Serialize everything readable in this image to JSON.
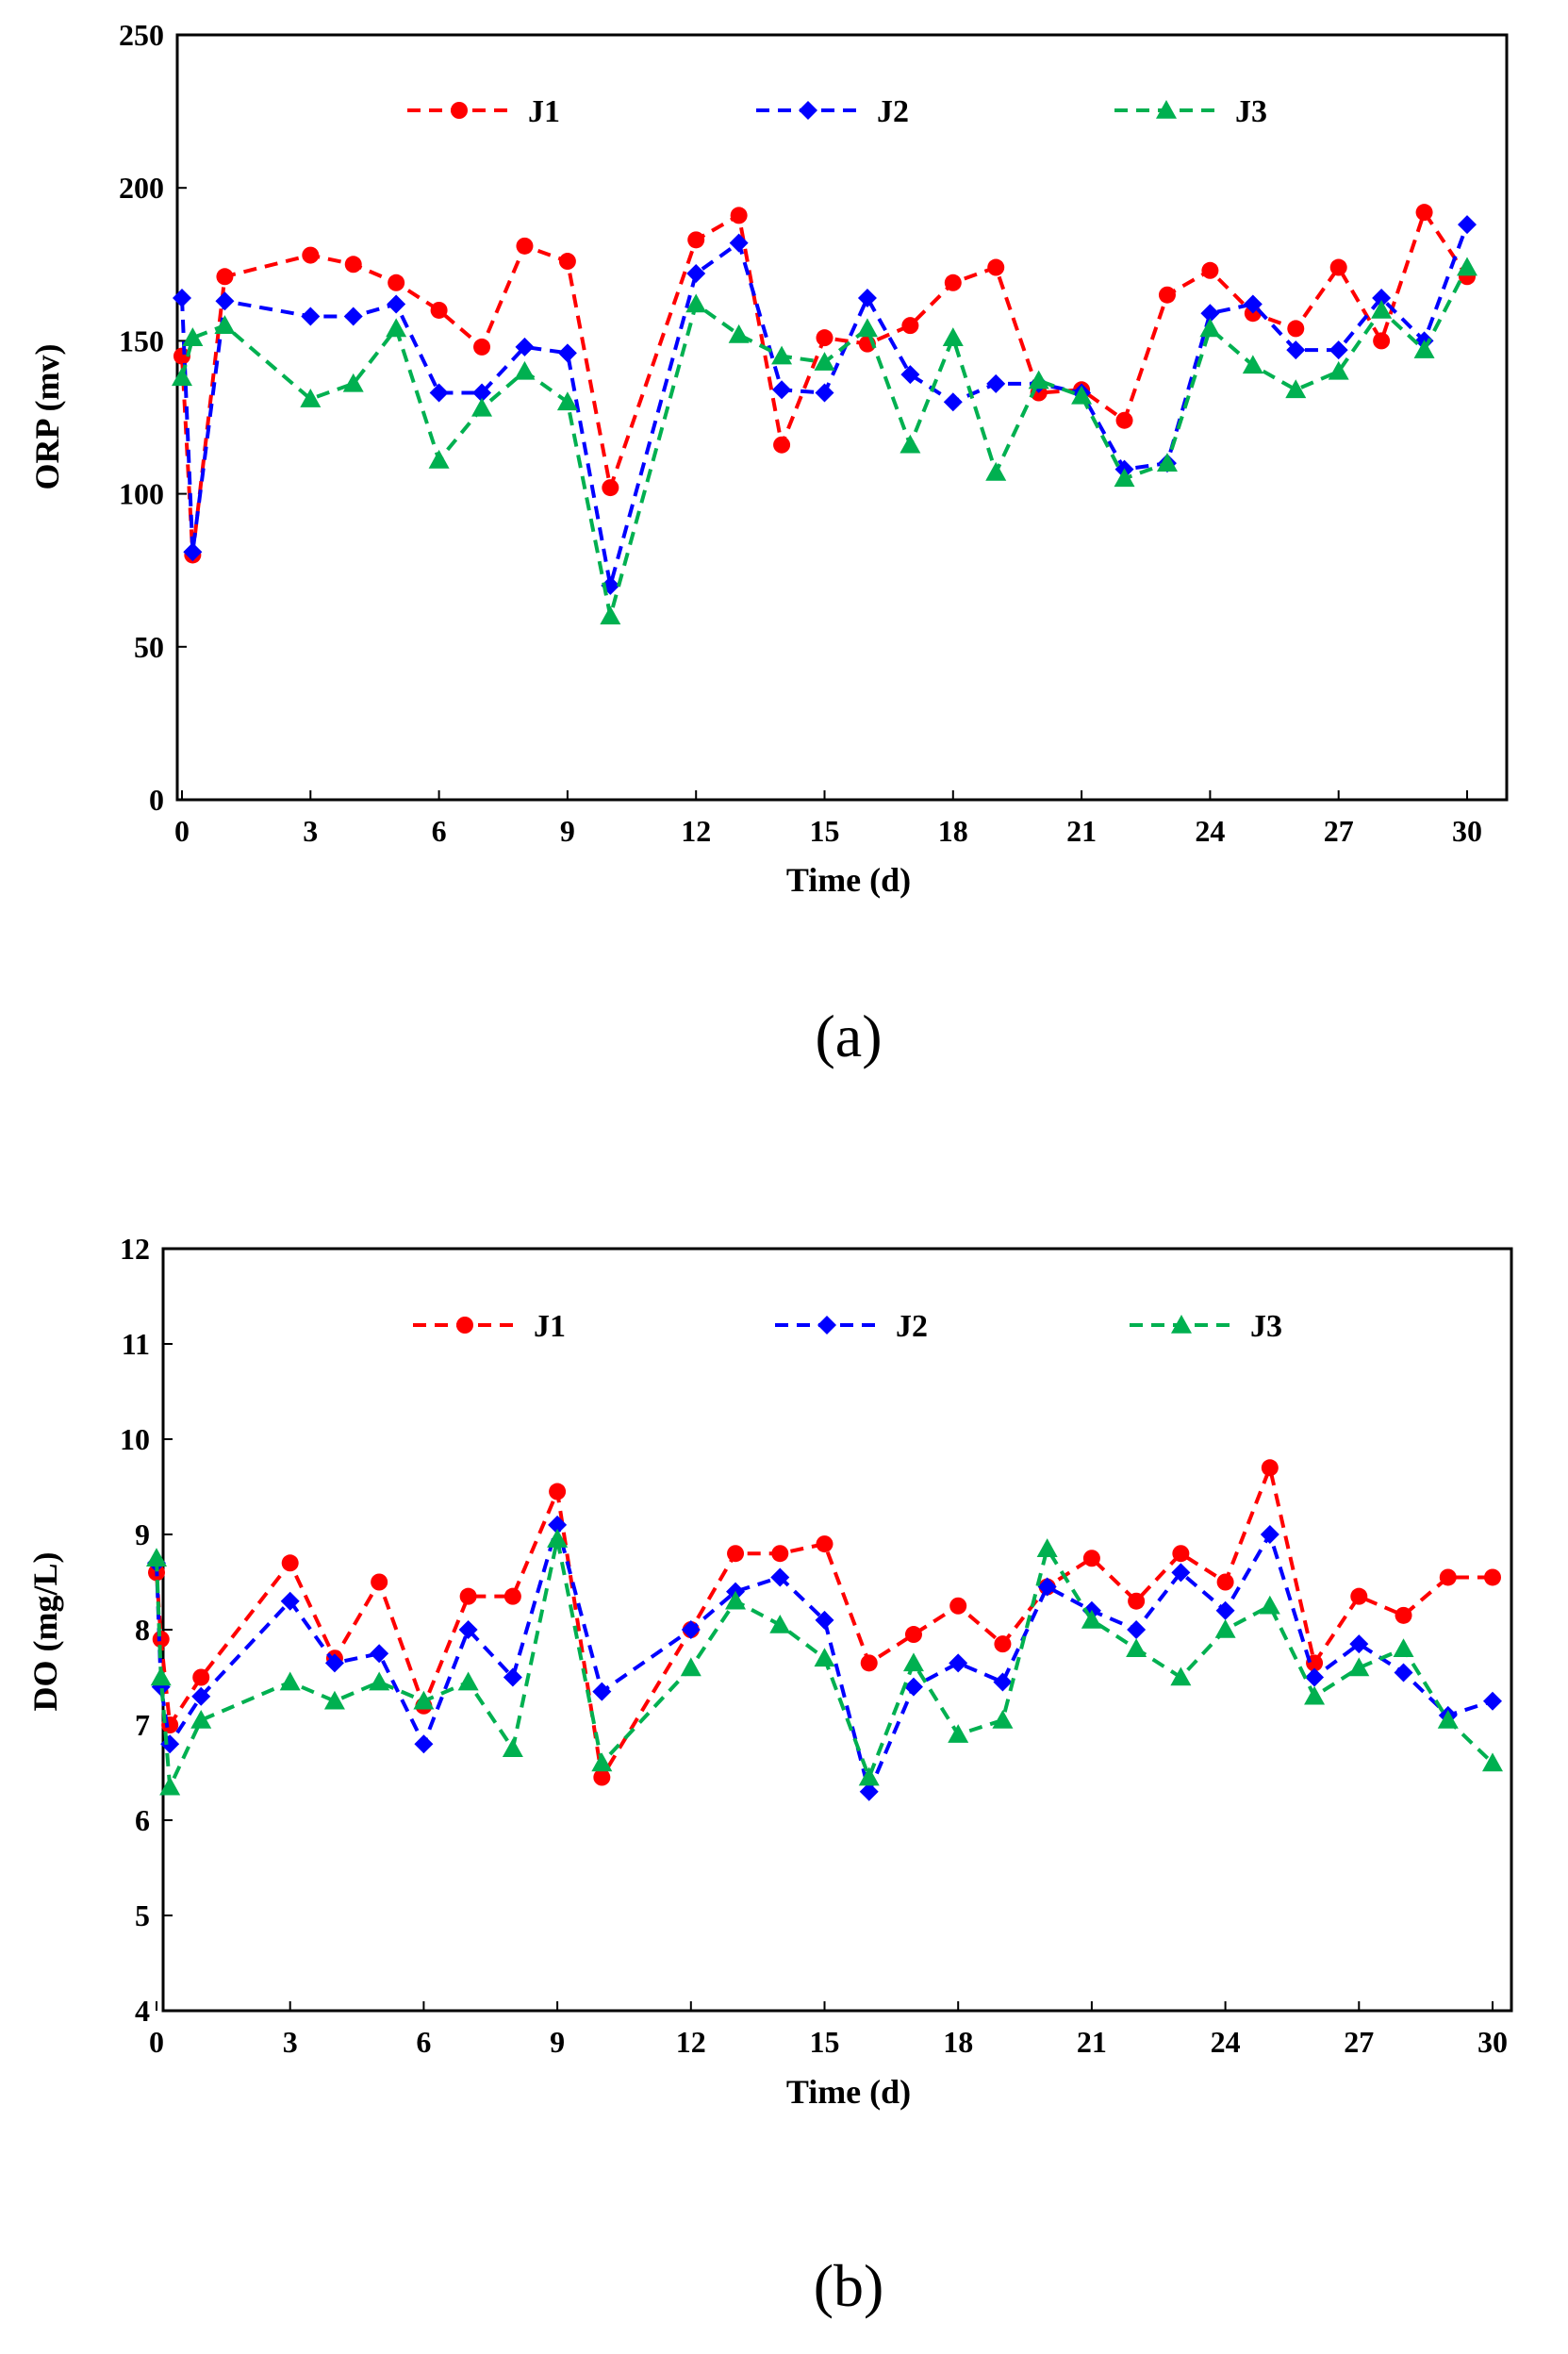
{
  "chart_data": [
    {
      "type": "line",
      "panel_label": "(a)",
      "xlabel": "Time (d)",
      "ylabel": "ORP (mv)",
      "xlim": [
        0,
        31
      ],
      "ylim": [
        0,
        250
      ],
      "xticks": [
        0,
        3,
        6,
        9,
        12,
        15,
        18,
        21,
        24,
        27,
        30
      ],
      "yticks": [
        0,
        50,
        100,
        150,
        200,
        250
      ],
      "legend": "top",
      "x": [
        0,
        0.25,
        1,
        3,
        4,
        5,
        6,
        7,
        8,
        9,
        10,
        12,
        13,
        14,
        15,
        16,
        17,
        18,
        19,
        20,
        21,
        22,
        23,
        24,
        25,
        26,
        27,
        28,
        29,
        30
      ],
      "series": [
        {
          "name": "J1",
          "color": "#ff0000",
          "marker": "circle",
          "values": [
            145,
            80,
            171,
            178,
            175,
            169,
            160,
            148,
            181,
            176,
            102,
            183,
            191,
            116,
            151,
            149,
            155,
            169,
            174,
            133,
            134,
            124,
            165,
            173,
            159,
            154,
            174,
            150,
            192,
            171
          ]
        },
        {
          "name": "J2",
          "color": "#0000ff",
          "marker": "diamond",
          "values": [
            164,
            81,
            163,
            158,
            158,
            162,
            133,
            133,
            148,
            146,
            70,
            172,
            182,
            134,
            133,
            164,
            139,
            130,
            136,
            136,
            133,
            108,
            110,
            159,
            162,
            147,
            147,
            164,
            150,
            188
          ]
        },
        {
          "name": "J3",
          "color": "#00b050",
          "marker": "triangle",
          "values": [
            138,
            151,
            155,
            131,
            136,
            154,
            111,
            128,
            140,
            130,
            60,
            162,
            152,
            145,
            143,
            154,
            116,
            151,
            107,
            137,
            132,
            105,
            110,
            154,
            142,
            134,
            140,
            160,
            147,
            174
          ]
        }
      ]
    },
    {
      "type": "line",
      "panel_label": "(b)",
      "xlabel": "Time (d)",
      "ylabel": "DO  (mg/L)",
      "xlim": [
        0,
        31
      ],
      "ylim": [
        4,
        12
      ],
      "xticks": [
        0,
        3,
        6,
        9,
        12,
        15,
        18,
        21,
        24,
        27,
        30
      ],
      "yticks": [
        4,
        5,
        6,
        7,
        8,
        9,
        10,
        11,
        12
      ],
      "legend": "top",
      "x": [
        0,
        0.1,
        0.3,
        1,
        3,
        4,
        5,
        6,
        7,
        8,
        9,
        10,
        12,
        13,
        14,
        15,
        16,
        17,
        18,
        19,
        20,
        21,
        22,
        23,
        24,
        25,
        26,
        27,
        28,
        29,
        30
      ],
      "series": [
        {
          "name": "J1",
          "color": "#ff0000",
          "marker": "circle",
          "values": [
            8.6,
            7.9,
            7.0,
            7.5,
            8.7,
            7.7,
            8.5,
            7.2,
            8.35,
            8.35,
            9.45,
            6.45,
            8.0,
            8.8,
            8.8,
            8.9,
            7.65,
            7.95,
            8.25,
            7.85,
            8.45,
            8.75,
            8.3,
            8.8,
            8.5,
            9.7,
            7.65,
            8.35,
            8.15,
            8.55,
            8.55
          ]
        },
        {
          "name": "J2",
          "color": "#0000ff",
          "marker": "diamond",
          "values": [
            8.7,
            7.4,
            6.8,
            7.3,
            8.3,
            7.65,
            7.75,
            6.8,
            8.0,
            7.5,
            9.1,
            7.35,
            8.0,
            8.4,
            8.55,
            8.1,
            6.3,
            7.4,
            7.65,
            7.45,
            8.45,
            8.2,
            8.0,
            8.6,
            8.2,
            9.0,
            7.5,
            7.85,
            7.55,
            7.1,
            7.25
          ]
        },
        {
          "name": "J3",
          "color": "#00b050",
          "marker": "triangle",
          "values": [
            8.75,
            7.5,
            6.35,
            7.05,
            7.45,
            7.25,
            7.45,
            7.25,
            7.45,
            6.75,
            8.95,
            6.6,
            7.6,
            8.3,
            8.05,
            7.7,
            6.45,
            7.65,
            6.9,
            7.05,
            8.85,
            8.1,
            7.8,
            7.5,
            8.0,
            8.25,
            7.3,
            7.6,
            7.8,
            7.05,
            6.6
          ]
        }
      ]
    }
  ]
}
